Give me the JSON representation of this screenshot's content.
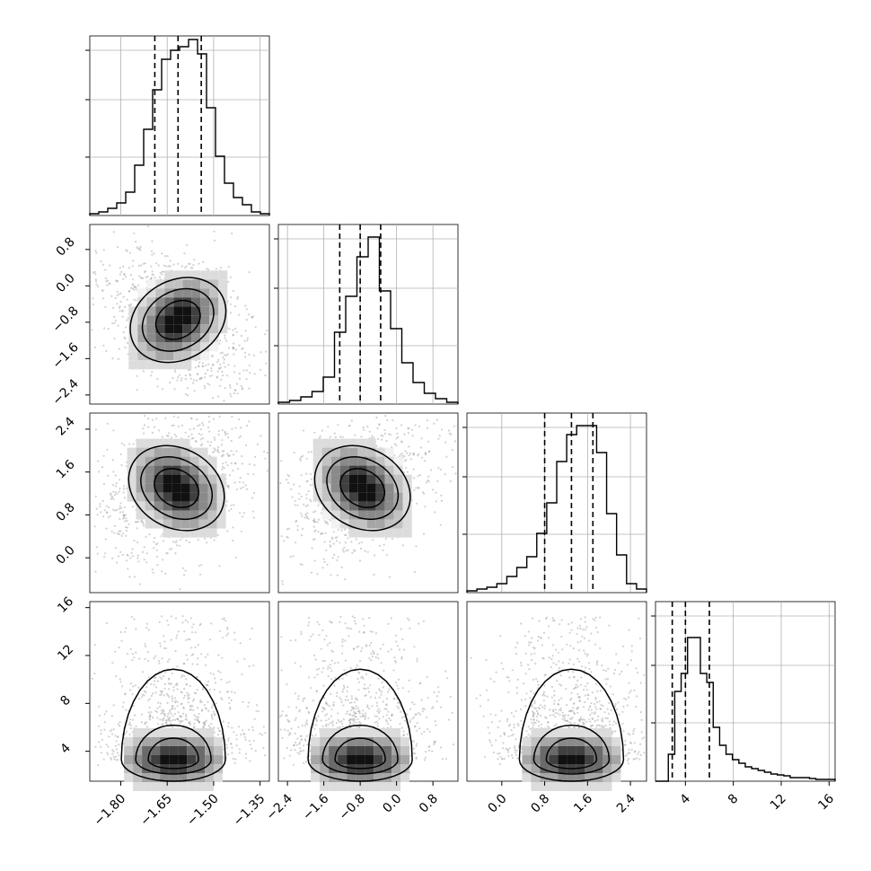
{
  "chart_data": {
    "type": "corner",
    "parameters": [
      {
        "index": 0,
        "range": [
          -1.9,
          -1.32
        ],
        "ticks": [
          -1.8,
          -1.65,
          -1.5,
          -1.35
        ],
        "tick_labels": [
          "−1.80",
          "−1.65",
          "−1.50",
          "−1.35"
        ],
        "quantiles": [
          -1.69,
          -1.615,
          -1.54
        ],
        "histogram": [
          0.01,
          0.02,
          0.04,
          0.07,
          0.13,
          0.28,
          0.48,
          0.7,
          0.87,
          0.92,
          0.94,
          0.98,
          0.9,
          0.6,
          0.33,
          0.18,
          0.1,
          0.06,
          0.02,
          0.01
        ]
      },
      {
        "index": 1,
        "range": [
          -2.6,
          1.35
        ],
        "ticks": [
          -2.4,
          -1.6,
          -0.8,
          0.0,
          0.8
        ],
        "tick_labels": [
          "−2.4",
          "−1.6",
          "−0.8",
          "0.0",
          "0.8"
        ],
        "quantiles": [
          -1.25,
          -0.8,
          -0.35
        ],
        "histogram": [
          0.01,
          0.02,
          0.04,
          0.07,
          0.15,
          0.4,
          0.6,
          0.82,
          0.93,
          0.63,
          0.42,
          0.23,
          0.12,
          0.06,
          0.03,
          0.01
        ]
      },
      {
        "index": 2,
        "range": [
          -0.65,
          2.7
        ],
        "ticks": [
          0.0,
          0.8,
          1.6,
          2.4
        ],
        "tick_labels": [
          "0.0",
          "0.8",
          "1.6",
          "2.4"
        ],
        "quantiles": [
          0.8,
          1.3,
          1.7
        ],
        "histogram": [
          0.01,
          0.02,
          0.03,
          0.05,
          0.09,
          0.14,
          0.2,
          0.33,
          0.5,
          0.73,
          0.88,
          0.93,
          0.93,
          0.78,
          0.44,
          0.21,
          0.05,
          0.02
        ]
      },
      {
        "index": 3,
        "range": [
          1.5,
          16.5
        ],
        "ticks": [
          4,
          8,
          12,
          16
        ],
        "tick_labels": [
          "4",
          "8",
          "12",
          "16"
        ],
        "quantiles": [
          2.9,
          4.0,
          6.0
        ],
        "histogram": [
          0.0,
          0.0,
          0.15,
          0.5,
          0.6,
          0.8,
          0.8,
          0.6,
          0.55,
          0.3,
          0.2,
          0.15,
          0.12,
          0.1,
          0.08,
          0.07,
          0.06,
          0.05,
          0.04,
          0.035,
          0.03,
          0.02,
          0.02,
          0.02,
          0.015,
          0.01,
          0.01,
          0.01
        ]
      }
    ],
    "y_tick_labels": {
      "row1": [
        "0.8",
        "0.0",
        "−0.8",
        "−1.6",
        "−2.4"
      ],
      "row2": [
        "2.4",
        "1.6",
        "0.8",
        "0.0"
      ],
      "row3": [
        "16",
        "12",
        "8",
        "4"
      ]
    },
    "pairs": [
      {
        "x": 0,
        "y": 1,
        "center": [
          -1.615,
          -0.75
        ],
        "correlation": 0.35
      },
      {
        "x": 0,
        "y": 2,
        "center": [
          -1.62,
          1.3
        ],
        "correlation": -0.3
      },
      {
        "x": 1,
        "y": 2,
        "center": [
          -0.75,
          1.3
        ],
        "correlation": -0.35
      },
      {
        "x": 0,
        "y": 3,
        "center": [
          -1.63,
          3.3
        ],
        "correlation": 0.0
      },
      {
        "x": 1,
        "y": 3,
        "center": [
          -0.8,
          3.3
        ],
        "correlation": 0.0
      },
      {
        "x": 2,
        "y": 3,
        "center": [
          1.3,
          3.3
        ],
        "correlation": 0.0
      }
    ],
    "grid": true
  }
}
